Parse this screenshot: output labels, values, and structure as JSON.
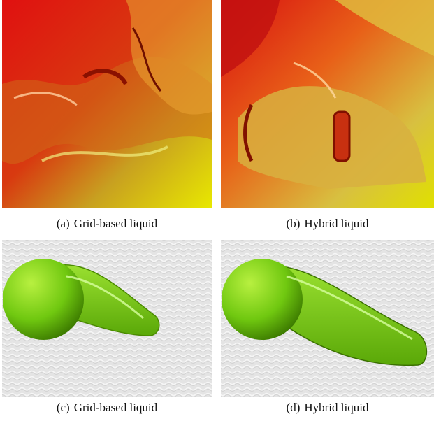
{
  "figure": {
    "panels": [
      {
        "label": "(a)",
        "caption": "Grid-based liquid"
      },
      {
        "label": "(b)",
        "caption": "Hybrid liquid"
      },
      {
        "label": "(c)",
        "caption": "Grid-based liquid"
      },
      {
        "label": "(d)",
        "caption": "Hybrid liquid"
      }
    ]
  }
}
